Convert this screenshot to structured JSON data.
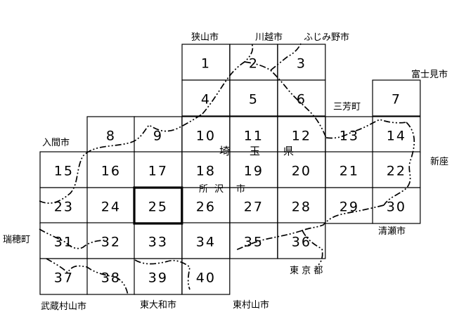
{
  "map": {
    "selected_sheet": "25",
    "sheets": [
      {
        "num": "1",
        "col": 4,
        "row": 0
      },
      {
        "num": "2",
        "col": 5,
        "row": 0
      },
      {
        "num": "3",
        "col": 6,
        "row": 0
      },
      {
        "num": "4",
        "col": 4,
        "row": 1
      },
      {
        "num": "5",
        "col": 5,
        "row": 1
      },
      {
        "num": "6",
        "col": 6,
        "row": 1
      },
      {
        "num": "7",
        "col": 9,
        "row": 1
      },
      {
        "num": "8",
        "col": 2,
        "row": 2
      },
      {
        "num": "9",
        "col": 3,
        "row": 2
      },
      {
        "num": "10",
        "col": 4,
        "row": 2
      },
      {
        "num": "11",
        "col": 5,
        "row": 2
      },
      {
        "num": "12",
        "col": 6,
        "row": 2
      },
      {
        "num": "13",
        "col": 7,
        "row": 2
      },
      {
        "num": "14",
        "col": 9,
        "row": 2
      },
      {
        "num": "15",
        "col": 1,
        "row": 3
      },
      {
        "num": "16",
        "col": 2,
        "row": 3
      },
      {
        "num": "17",
        "col": 3,
        "row": 3
      },
      {
        "num": "18",
        "col": 4,
        "row": 3
      },
      {
        "num": "19",
        "col": 5,
        "row": 3
      },
      {
        "num": "20",
        "col": 6,
        "row": 3
      },
      {
        "num": "21",
        "col": 7,
        "row": 3
      },
      {
        "num": "22",
        "col": 9,
        "row": 3
      },
      {
        "num": "23",
        "col": 1,
        "row": 4
      },
      {
        "num": "24",
        "col": 2,
        "row": 4
      },
      {
        "num": "25",
        "col": 3,
        "row": 4
      },
      {
        "num": "26",
        "col": 4,
        "row": 4
      },
      {
        "num": "27",
        "col": 5,
        "row": 4
      },
      {
        "num": "28",
        "col": 6,
        "row": 4
      },
      {
        "num": "29",
        "col": 7,
        "row": 4
      },
      {
        "num": "30",
        "col": 9,
        "row": 4
      },
      {
        "num": "31",
        "col": 1,
        "row": 5
      },
      {
        "num": "32",
        "col": 2,
        "row": 5
      },
      {
        "num": "33",
        "col": 3,
        "row": 5
      },
      {
        "num": "34",
        "col": 4,
        "row": 5
      },
      {
        "num": "35",
        "col": 5,
        "row": 5
      },
      {
        "num": "36",
        "col": 6,
        "row": 5
      },
      {
        "num": "37",
        "col": 1,
        "row": 6
      },
      {
        "num": "38",
        "col": 2,
        "row": 6
      },
      {
        "num": "39",
        "col": 3,
        "row": 6
      },
      {
        "num": "40",
        "col": 4,
        "row": 6
      }
    ],
    "places": {
      "sayama": "狭山市",
      "kawagoe": "川越市",
      "fujimino": "ふじみ野市",
      "fujimi": "富士見市",
      "miyoshi": "三芳町",
      "iruma": "入間市",
      "niiza": "新座",
      "mizuho": "瑞穂町",
      "kiyose": "清瀬市",
      "tokyo": "東 京 都",
      "musashimurayama": "武蔵村山市",
      "higashiyamato": "東大和市",
      "higashimurayama": "東村山市"
    },
    "overlay": {
      "sai": "埼",
      "tama": "玉",
      "ken": "県",
      "tokoro": "所",
      "sawa": "沢",
      "shi": "市"
    }
  }
}
